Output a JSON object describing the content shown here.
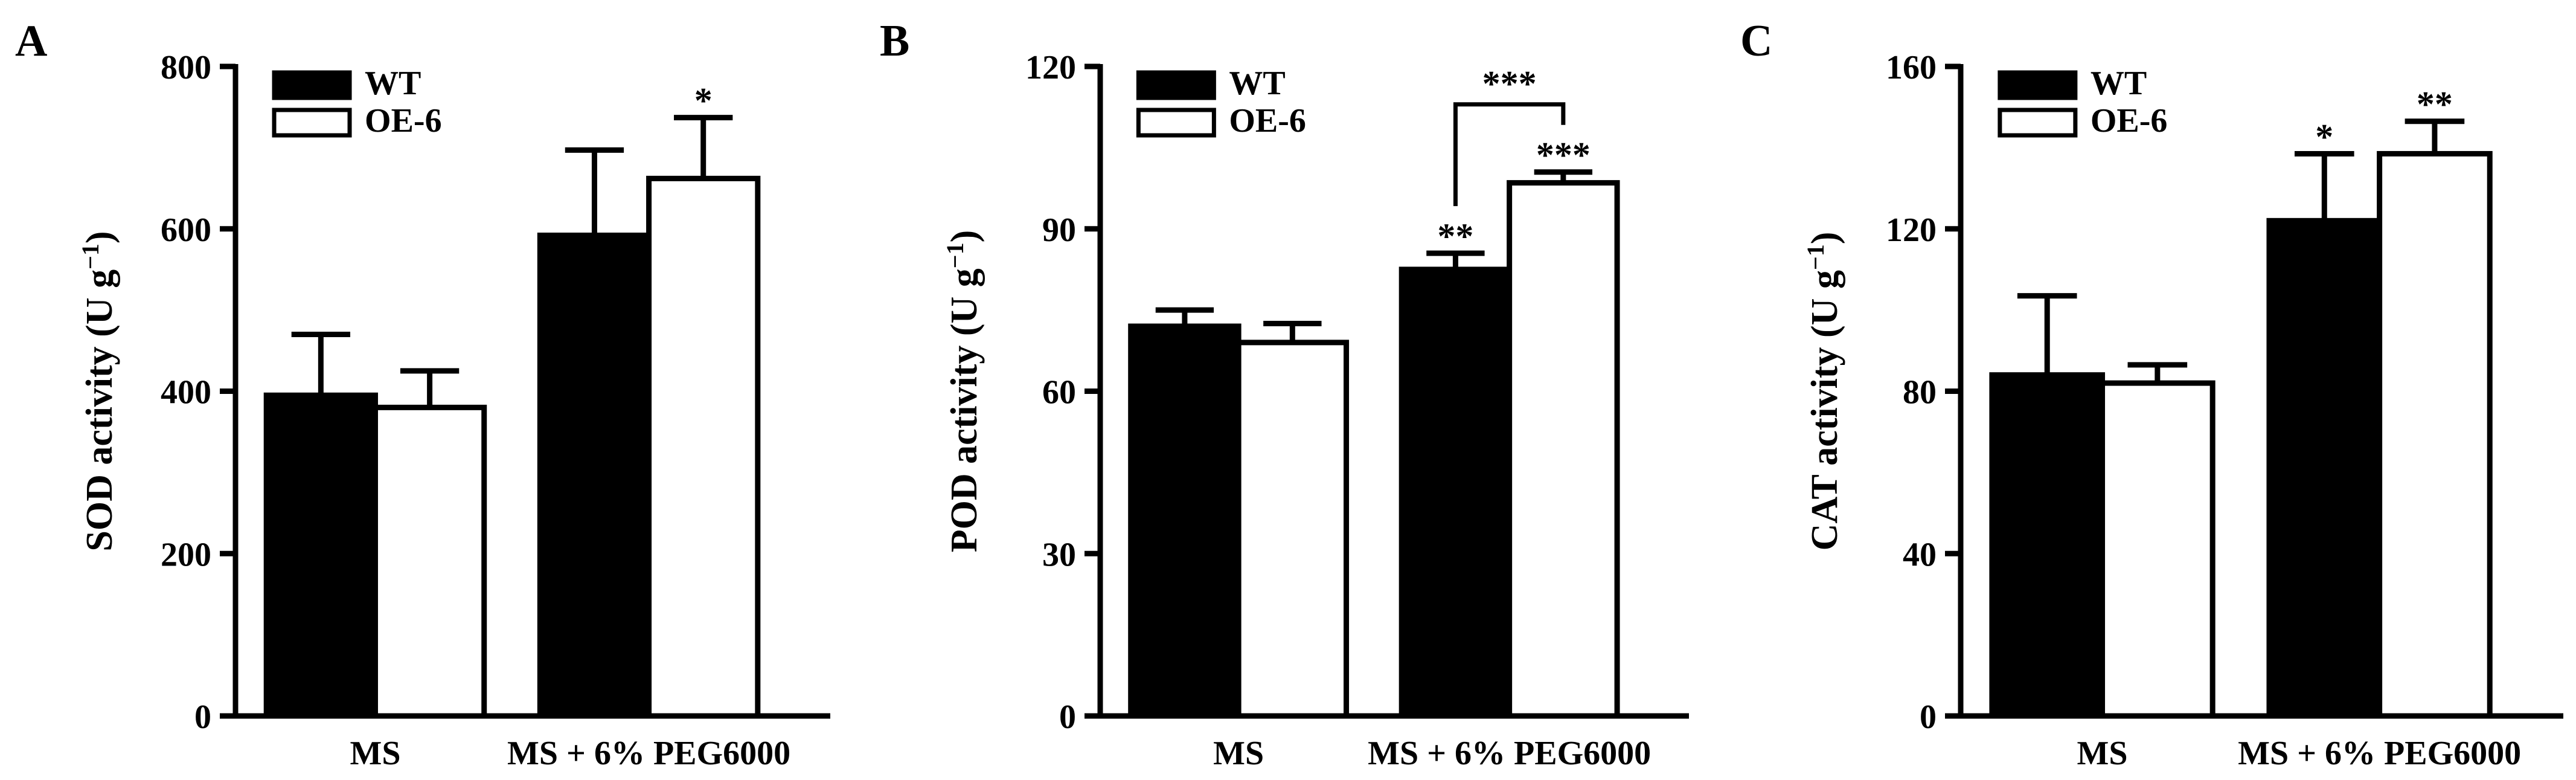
{
  "chart_data": [
    {
      "type": "bar",
      "panel_label": "A",
      "ylabel": "SOD activity (U g",
      "ylabel_sup": "−1",
      "ylabel_close": ")",
      "ylim": [
        0,
        800
      ],
      "yticks": [
        0,
        200,
        400,
        600,
        800
      ],
      "categories": [
        "MS",
        "MS + 6% PEG6000"
      ],
      "legend": {
        "placement": "top-left"
      },
      "series": [
        {
          "name": "WT",
          "values": [
            395,
            592
          ],
          "errors": [
            75,
            105
          ]
        },
        {
          "name": "OE-6",
          "values": [
            380,
            662
          ],
          "errors": [
            45,
            75
          ]
        }
      ],
      "significance": [
        {
          "category": 1,
          "series": 1,
          "label": "*"
        }
      ],
      "brackets": []
    },
    {
      "type": "bar",
      "panel_label": "B",
      "ylabel": "POD activity (U g",
      "ylabel_sup": "−1",
      "ylabel_close": ")",
      "ylim": [
        0,
        120
      ],
      "yticks": [
        0,
        30,
        60,
        90,
        120
      ],
      "categories": [
        "MS",
        "MS + 6% PEG6000"
      ],
      "legend": {
        "placement": "top-left"
      },
      "series": [
        {
          "name": "WT",
          "values": [
            72,
            82.5
          ],
          "errors": [
            3,
            3
          ]
        },
        {
          "name": "OE-6",
          "values": [
            69,
            98.5
          ],
          "errors": [
            3.5,
            2
          ]
        }
      ],
      "significance": [
        {
          "category": 1,
          "series": 0,
          "label": "**"
        },
        {
          "category": 1,
          "series": 1,
          "label": "***"
        }
      ],
      "brackets": [
        {
          "category": 1,
          "from_series": 0,
          "to_series": 1,
          "y": 113,
          "label": "***"
        }
      ]
    },
    {
      "type": "bar",
      "panel_label": "C",
      "ylabel": "CAT activity (U g",
      "ylabel_sup": "−1",
      "ylabel_close": ")",
      "ylim": [
        0,
        160
      ],
      "yticks": [
        0,
        40,
        80,
        120,
        160
      ],
      "categories": [
        "MS",
        "MS + 6% PEG6000"
      ],
      "legend": {
        "placement": "top-left"
      },
      "series": [
        {
          "name": "WT",
          "values": [
            84,
            122
          ],
          "errors": [
            19.5,
            16.5
          ]
        },
        {
          "name": "OE-6",
          "values": [
            82,
            138.5
          ],
          "errors": [
            4.5,
            8
          ]
        }
      ],
      "significance": [
        {
          "category": 1,
          "series": 0,
          "label": "*"
        },
        {
          "category": 1,
          "series": 1,
          "label": "**"
        }
      ],
      "brackets": []
    }
  ],
  "colors": {
    "WT": "#000000",
    "OE-6": "#ffffff",
    "stroke": "#000000"
  }
}
